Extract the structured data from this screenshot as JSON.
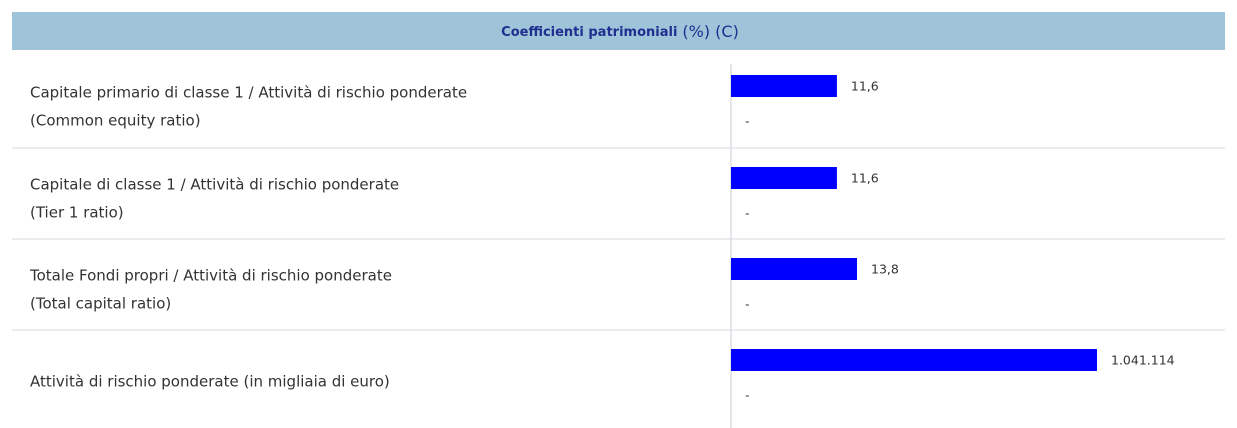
{
  "header": {
    "title": "Coefficienti patrimoniali",
    "subtitle": "(%) (C)"
  },
  "rows": [
    {
      "label": [
        "Capitale primario di classe 1 / Attività di rischio ponderate",
        "(Common equity ratio)"
      ],
      "value": 11.6,
      "value_label": "11,6",
      "previous": "-"
    },
    {
      "label": [
        "Capitale di classe 1 / Attività di rischio ponderate",
        "(Tier 1 ratio)"
      ],
      "value": 11.6,
      "value_label": "11,6",
      "previous": "-"
    },
    {
      "label": [
        "Totale Fondi propri / Attività di rischio ponderate",
        "(Total capital ratio)"
      ],
      "value": 13.8,
      "value_label": "13,8",
      "previous": "-"
    },
    {
      "label": [
        "Attività di rischio ponderate (in migliaia di euro)"
      ],
      "value": 1041114,
      "value_label": "1.041.114",
      "previous": "-"
    }
  ]
}
